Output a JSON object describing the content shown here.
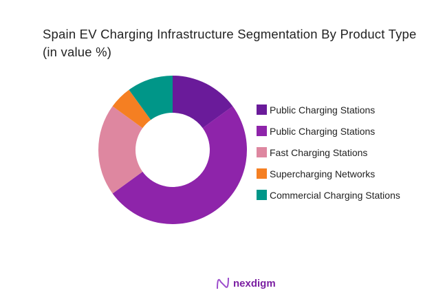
{
  "chart_data": {
    "type": "donut",
    "title": "Spain EV Charging Infrastructure Segmentation By Product Type (in value %)",
    "series": [
      {
        "name": "Public Charging Stations",
        "value": 15,
        "color": "#6a1b9a"
      },
      {
        "name": "Public Charging Stations",
        "value": 50,
        "color": "#8e24aa"
      },
      {
        "name": "Fast Charging Stations",
        "value": 20,
        "color": "#de87a0"
      },
      {
        "name": "Supercharging Networks",
        "value": 5,
        "color": "#f57f22"
      },
      {
        "name": "Commercial Charging Stations",
        "value": 10,
        "color": "#009688"
      }
    ],
    "legend_placement": "right"
  },
  "brand": {
    "name": "nexdigm",
    "color": "#7b1fa2"
  }
}
